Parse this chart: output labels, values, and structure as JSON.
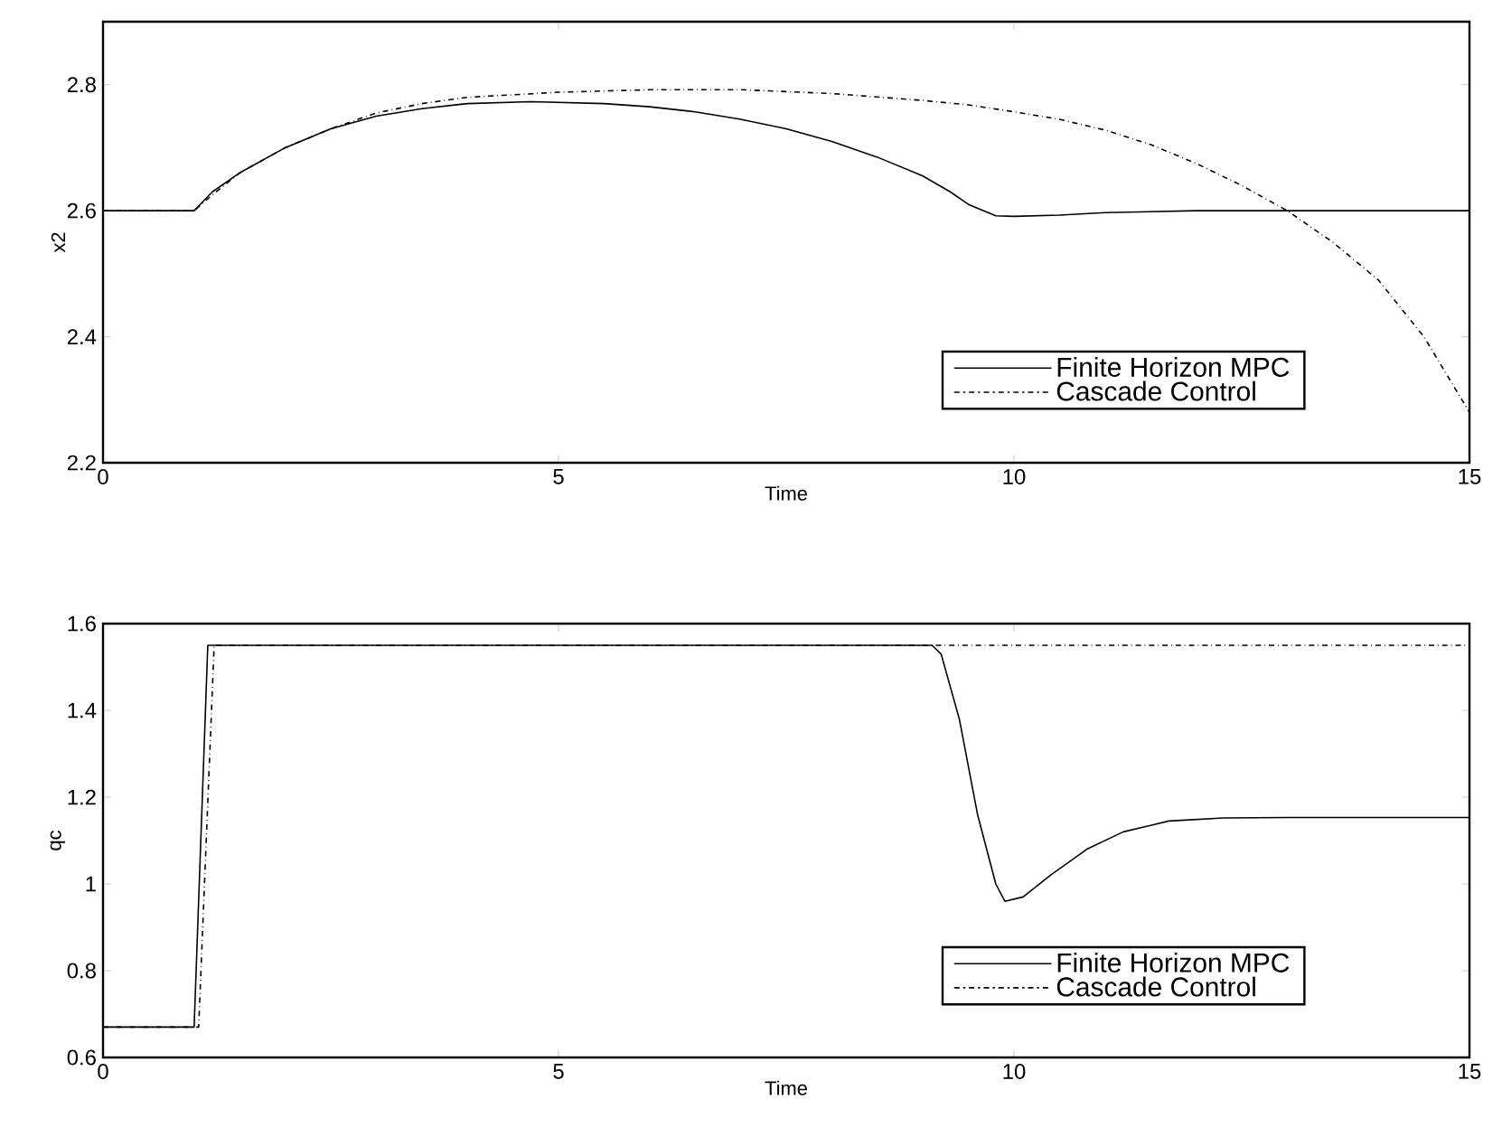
{
  "chart_data": [
    {
      "type": "line",
      "xlabel": "Time",
      "ylabel": "x2",
      "xlim": [
        0,
        15
      ],
      "ylim": [
        2.2,
        2.9
      ],
      "xticks": [
        0,
        5,
        10,
        15
      ],
      "yticks": [
        2.2,
        2.4,
        2.6,
        2.8
      ],
      "grid": false,
      "legend": "bottom right",
      "marker": "none",
      "series": [
        {
          "name": "Finite Horizon MPC",
          "color": "#000000",
          "line_style": "solid",
          "x": [
            0,
            1.0,
            1.2,
            1.5,
            2,
            2.5,
            3,
            3.5,
            4,
            4.7,
            5.5,
            6,
            6.5,
            7,
            7.5,
            8,
            8.5,
            9,
            9.3,
            9.5,
            9.8,
            10,
            10.5,
            11,
            12,
            15
          ],
          "values": [
            2.6,
            2.6,
            2.63,
            2.66,
            2.7,
            2.73,
            2.75,
            2.762,
            2.77,
            2.773,
            2.77,
            2.765,
            2.757,
            2.745,
            2.73,
            2.71,
            2.685,
            2.655,
            2.63,
            2.61,
            2.592,
            2.591,
            2.593,
            2.597,
            2.6,
            2.6
          ]
        },
        {
          "name": "Cascade Control",
          "color": "#000000",
          "line_style": "dashdot",
          "x": [
            0,
            1.0,
            1.2,
            1.5,
            2,
            2.5,
            3,
            3.5,
            4,
            5,
            6,
            7,
            8,
            9,
            9.5,
            10,
            10.5,
            11,
            11.5,
            12,
            12.5,
            13,
            13.5,
            14,
            14.5,
            15
          ],
          "values": [
            2.6,
            2.6,
            2.625,
            2.66,
            2.7,
            2.73,
            2.755,
            2.77,
            2.78,
            2.788,
            2.792,
            2.792,
            2.786,
            2.775,
            2.768,
            2.757,
            2.745,
            2.728,
            2.705,
            2.675,
            2.64,
            2.6,
            2.55,
            2.49,
            2.4,
            2.28
          ]
        }
      ]
    },
    {
      "type": "line",
      "xlabel": "Time",
      "ylabel": "qc",
      "xlim": [
        0,
        15
      ],
      "ylim": [
        0.6,
        1.6
      ],
      "xticks": [
        0,
        5,
        10,
        15
      ],
      "yticks": [
        0.6,
        0.8,
        1,
        1.2,
        1.4,
        1.6
      ],
      "grid": false,
      "legend": "bottom right",
      "marker": "none",
      "series": [
        {
          "name": "Finite Horizon MPC",
          "color": "#000000",
          "line_style": "solid",
          "x": [
            0,
            1.0,
            1.15,
            9.1,
            9.2,
            9.4,
            9.6,
            9.8,
            9.9,
            10.1,
            10.4,
            10.8,
            11.2,
            11.7,
            12.3,
            13,
            15
          ],
          "values": [
            0.67,
            0.67,
            1.55,
            1.55,
            1.53,
            1.38,
            1.16,
            1.0,
            0.96,
            0.97,
            1.02,
            1.08,
            1.12,
            1.145,
            1.152,
            1.153,
            1.153
          ]
        },
        {
          "name": "Cascade Control",
          "color": "#000000",
          "line_style": "dashdot",
          "x": [
            0,
            1.05,
            1.22,
            15
          ],
          "values": [
            0.67,
            0.67,
            1.55,
            1.55
          ]
        }
      ]
    }
  ]
}
